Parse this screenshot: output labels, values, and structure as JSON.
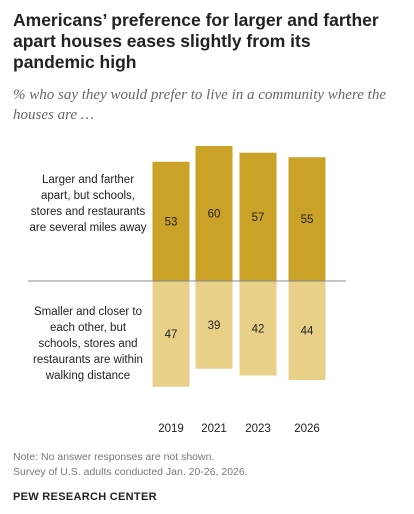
{
  "header": {
    "title": "Americans’ preference for larger and farther apart houses eases slightly from its pandemic high",
    "subtitle": "% who say they would prefer to live in a community where the houses are …"
  },
  "chart_data": {
    "type": "bar",
    "layout": "diverging stacked",
    "categories": [
      "2019",
      "2021",
      "2023",
      "2026"
    ],
    "series": [
      {
        "name": "Larger and farther apart, but schools, stores and restaurants are several miles away",
        "values": [
          53,
          60,
          57,
          55
        ],
        "color": "#c9a227"
      },
      {
        "name": "Smaller and closer to each other, but schools, stores and restaurants are within walking distance",
        "values": [
          47,
          39,
          42,
          44
        ],
        "color": "#e8d088"
      }
    ],
    "axis_line_color": "#888888"
  },
  "labels": {
    "top_series": "Larger and farther apart, but schools, stores and restaurants are several miles away",
    "bottom_series": "Smaller and closer to each other, but schools, stores and restaurants are within walking distance"
  },
  "footer": {
    "note": "Note: No answer responses are not shown.",
    "source": "Survey of U.S. adults conducted Jan. 20-26, 2026.",
    "brand": "PEW RESEARCH CENTER"
  }
}
